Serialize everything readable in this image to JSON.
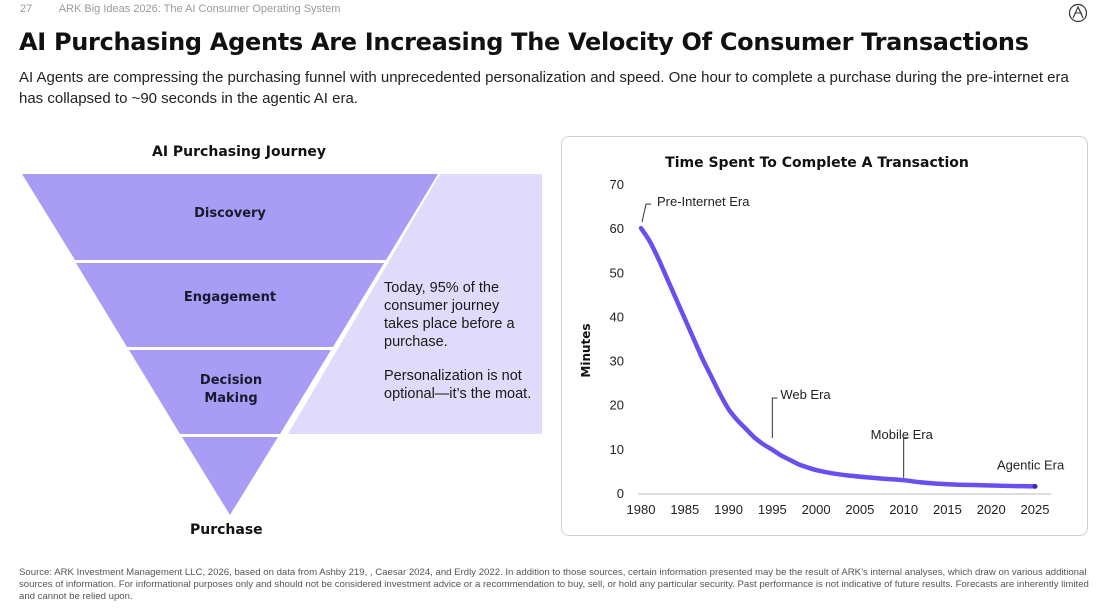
{
  "header": {
    "page_number": "27",
    "deck_title": "ARK Big Ideas 2026: The AI Consumer Operating System",
    "title": "AI Purchasing Agents Are Increasing The Velocity Of Consumer Transactions",
    "subtitle": "AI Agents are compressing the purchasing funnel with unprecedented personalization and speed. One hour to complete a purchase during the pre-internet era has collapsed to ~90 seconds in the agentic AI era."
  },
  "funnel": {
    "title": "AI Purchasing Journey",
    "stages": [
      "Discovery",
      "Engagement",
      "Decision Making",
      "Purchase"
    ],
    "callout_1": "Today, 95% of the consumer journey takes place before a purchase.",
    "callout_2": "Personalization is not optional—it’s the moat.",
    "colors": {
      "stage": "#a89cf5",
      "panel": "#e0dbfb"
    }
  },
  "chart_data": {
    "type": "line",
    "title": "Time Spent To Complete A Transaction",
    "xlabel": "",
    "ylabel": "Minutes",
    "xlim": [
      1980,
      2025
    ],
    "ylim": [
      0,
      70
    ],
    "xticks": [
      1980,
      1985,
      1990,
      1995,
      2000,
      2005,
      2010,
      2015,
      2020,
      2025
    ],
    "yticks": [
      0,
      10,
      20,
      30,
      40,
      50,
      60,
      70
    ],
    "grid": false,
    "line_color": "#6b4ef0",
    "points": [
      {
        "x": 1980,
        "y": 60
      },
      {
        "x": 1981,
        "y": 57
      },
      {
        "x": 1982,
        "y": 53
      },
      {
        "x": 1983,
        "y": 48.5
      },
      {
        "x": 1984,
        "y": 44
      },
      {
        "x": 1985,
        "y": 39.5
      },
      {
        "x": 1986,
        "y": 35
      },
      {
        "x": 1987,
        "y": 30.5
      },
      {
        "x": 1988,
        "y": 26.5
      },
      {
        "x": 1989,
        "y": 22.5
      },
      {
        "x": 1990,
        "y": 19
      },
      {
        "x": 1991,
        "y": 16.5
      },
      {
        "x": 1992,
        "y": 14.5
      },
      {
        "x": 1993,
        "y": 12.5
      },
      {
        "x": 1994,
        "y": 11
      },
      {
        "x": 1995,
        "y": 9.8
      },
      {
        "x": 1996,
        "y": 8.5
      },
      {
        "x": 1997,
        "y": 7.5
      },
      {
        "x": 1998,
        "y": 6.5
      },
      {
        "x": 1999,
        "y": 5.8
      },
      {
        "x": 2000,
        "y": 5.2
      },
      {
        "x": 2002,
        "y": 4.4
      },
      {
        "x": 2004,
        "y": 3.9
      },
      {
        "x": 2006,
        "y": 3.5
      },
      {
        "x": 2008,
        "y": 3.2
      },
      {
        "x": 2010,
        "y": 2.9
      },
      {
        "x": 2012,
        "y": 2.4
      },
      {
        "x": 2014,
        "y": 2.1
      },
      {
        "x": 2016,
        "y": 1.9
      },
      {
        "x": 2018,
        "y": 1.8
      },
      {
        "x": 2020,
        "y": 1.7
      },
      {
        "x": 2022,
        "y": 1.6
      },
      {
        "x": 2025,
        "y": 1.5
      }
    ],
    "annotations": [
      {
        "label": "Pre-Internet Era",
        "x": 1980,
        "y": 60
      },
      {
        "label": "Web Era",
        "x": 1995,
        "y": 12
      },
      {
        "label": "Mobile Era",
        "x": 2010,
        "y": 3
      },
      {
        "label": "Agentic Era",
        "x": 2025,
        "y": 1.5
      }
    ]
  },
  "source": "Source: ARK Investment Management LLC, 2026, based on data from Ashby 219, , Caesar 2024, and Erdly 2022. In addition to those sources, certain information presented may be the result of ARK’s internal analyses, which draw on various additional sources of information. For informational purposes only and should not be considered investment advice or a recommendation to buy, sell, or hold any particular security. Past performance is not indicative of future results. Forecasts are inherently limited and cannot be relied upon."
}
